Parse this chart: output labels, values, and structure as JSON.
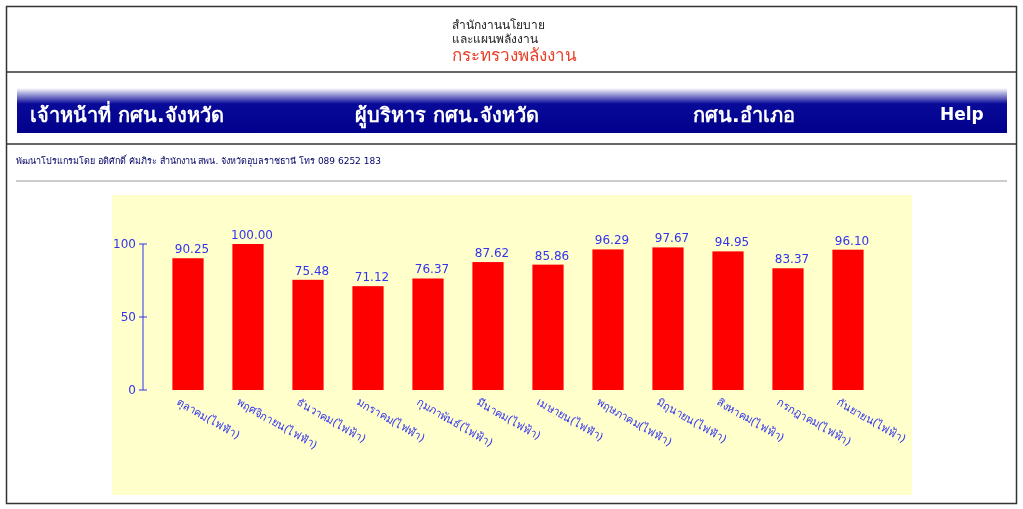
{
  "chart_data": {
    "type": "bar",
    "annotations": [
      "สำนักงานนโยบาย",
      "และแผนพลังงาน",
      "กระทรวงพลังงาน",
      "เจ้าหน้าที่ กศน.จังหวัด",
      "ผู้บริหาร กศน.จังหวัด",
      "กศน.อำเภอ",
      "Help",
      "พัฒนาโปรแกรมโดย อดิศักดิ์ คัมภิระ สำนักงาน สพน. จังหวัดอุบลราชธานี โทร 089 6252 183"
    ],
    "categories": [
      "ตุลาคม(ไฟฟ้า)",
      "พฤศจิกายน(ไฟฟ้า)",
      "ธันวาคม(ไฟฟ้า)",
      "มกราคม(ไฟฟ้า)",
      "กุมภาพันธ์(ไฟฟ้า)",
      "มีนาคม(ไฟฟ้า)",
      "เมษายน(ไฟฟ้า)",
      "พฤษภาคม(ไฟฟ้า)",
      "มิถุนายน(ไฟฟ้า)",
      "สิงหาคม(ไฟฟ้า)",
      "กรกฎาคม(ไฟฟ้า)",
      "กันยายน(ไฟฟ้า)"
    ],
    "values": [
      90.25,
      100,
      75.48,
      71.12,
      76.37,
      87.62,
      85.86,
      96.29,
      97.67,
      94.95,
      83.37,
      96.1
    ],
    "value_labels": [
      "90.25",
      "100.00",
      "75.48",
      "71.12",
      "76.37",
      "87.62",
      "85.86",
      "96.29",
      "97.67",
      "94.95",
      "83.37",
      "96.10"
    ],
    "color": "#ff0000",
    "ylim": [
      0,
      100
    ],
    "yticks": [
      0,
      50,
      100
    ],
    "grid": false
  }
}
